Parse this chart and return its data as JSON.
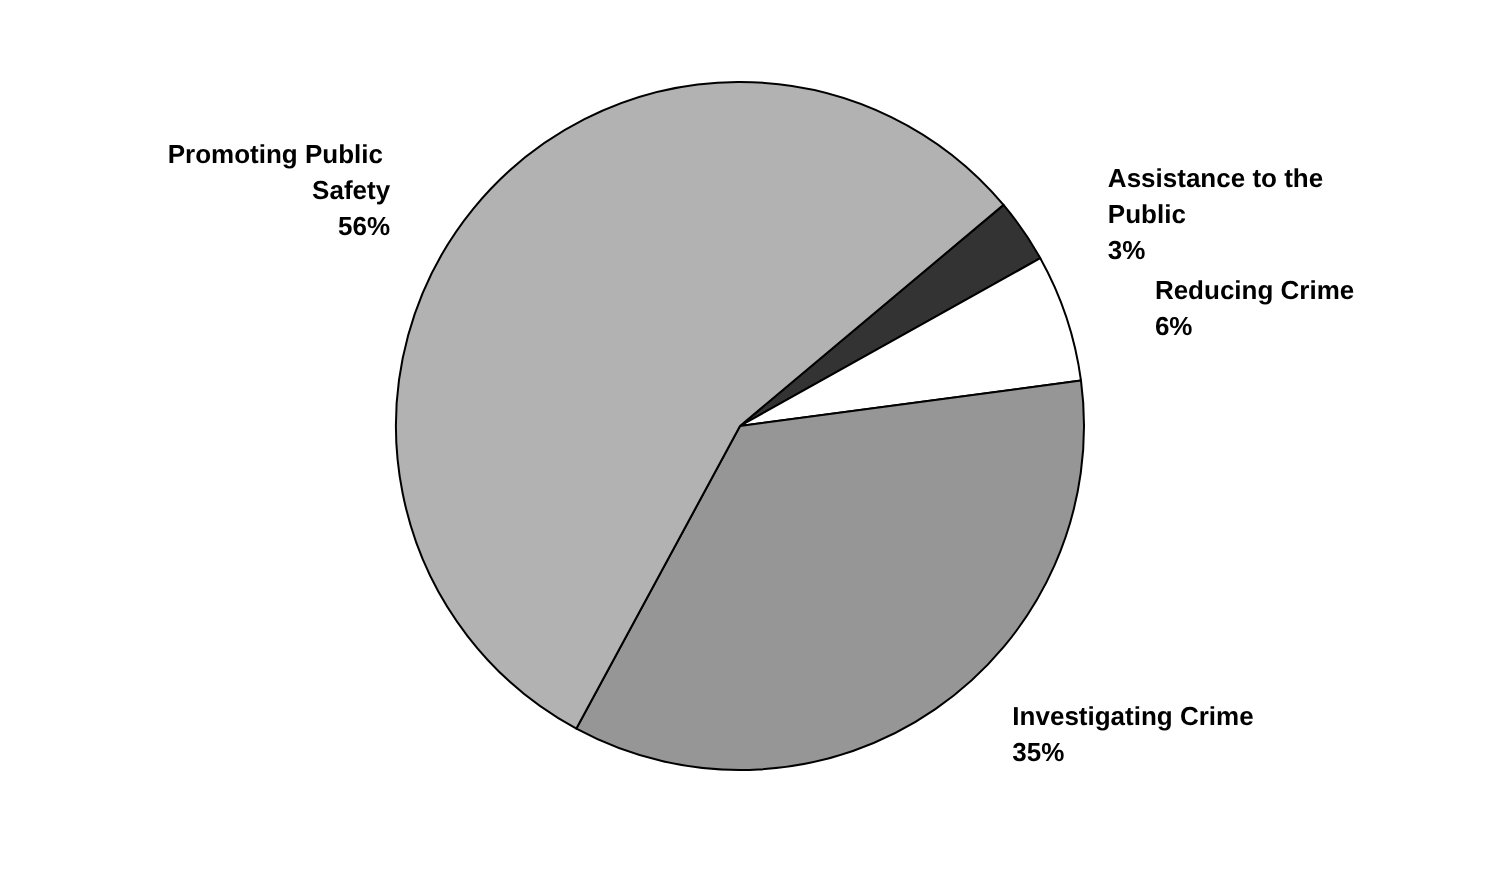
{
  "chart_data": {
    "type": "pie",
    "categories": [
      "Assistance to the Public",
      "Reducing Crime",
      "Investigating Crime",
      "Promoting Public Safety"
    ],
    "values": [
      3,
      6,
      35,
      56
    ],
    "colors": [
      "#333333",
      "#ffffff",
      "#969696",
      "#b2b2b2"
    ],
    "value_labels": [
      "3%",
      "6%",
      "35%",
      "56%"
    ],
    "legend": false
  }
}
